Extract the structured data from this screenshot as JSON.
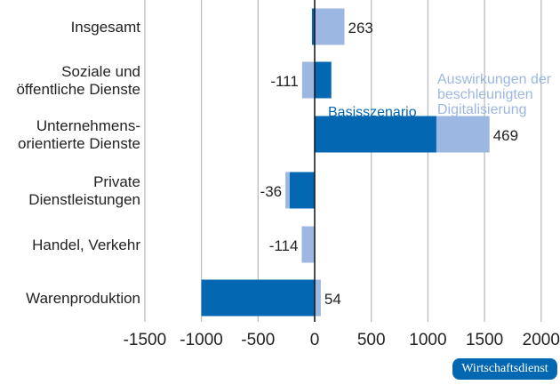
{
  "chart_data": {
    "type": "bar",
    "orientation": "horizontal",
    "stacked": true,
    "categories": [
      "Insgesamt",
      "Soziale und öffentliche Dienste",
      "Unternehmens-orientierte Dienste",
      "Private Dienstleistungen",
      "Handel, Verkehr",
      "Warenproduktion"
    ],
    "category_lines": [
      [
        "Insgesamt"
      ],
      [
        "Soziale und",
        "öffentliche Dienste"
      ],
      [
        "Unternehmens-",
        "orientierte Dienste"
      ],
      [
        "Private",
        "Dienstleistungen"
      ],
      [
        "Handel, Verkehr"
      ],
      [
        "Warenproduktion"
      ]
    ],
    "series": [
      {
        "name": "Basisszenario",
        "color": "#0467b1",
        "values": [
          -24,
          147,
          1075,
          -222,
          0,
          -1000
        ]
      },
      {
        "name": "Auswirkungen der beschleunigten Digitalisierung",
        "name_lines": [
          "Auswirkungen der",
          "beschleunigten",
          "Digitalisierung"
        ],
        "color": "#9cb7e2",
        "values": [
          263,
          -111,
          469,
          -36,
          -114,
          54
        ]
      }
    ],
    "data_labels": [
      "263",
      "-111",
      "469",
      "-36",
      "-114",
      "54"
    ],
    "xlim": [
      -1500,
      2000
    ],
    "xticks": [
      "-1500",
      "-1000",
      "-500",
      "0",
      "500",
      "1000",
      "1500",
      "2000"
    ],
    "grid": "vertical",
    "legend": "inline annotations"
  },
  "source_badge": "Wirtschaftsdienst"
}
